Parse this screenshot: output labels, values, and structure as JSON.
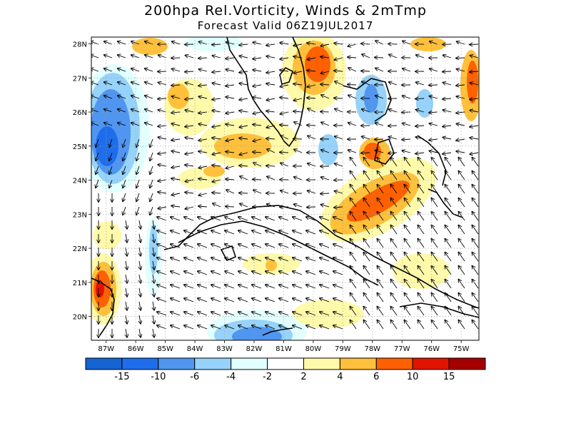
{
  "title": "200hpa Rel.Vorticity, Winds & 2mTmp",
  "subtitle": "Forecast Valid  06Z19JUL2017",
  "lat_labels": [
    "28N",
    "27N",
    "26N",
    "25N",
    "24N",
    "23N",
    "22N",
    "21N",
    "20N"
  ],
  "lon_labels": [
    "87W",
    "86W",
    "85W",
    "84W",
    "83W",
    "82W",
    "81W",
    "80W",
    "79W",
    "78W",
    "77W",
    "76W",
    "75W"
  ],
  "colorbar": {
    "colors": [
      "#1464d2",
      "#1e6eeb",
      "#5096f0",
      "#96d2fa",
      "#e1ffff",
      "#ffffff",
      "#fffaaa",
      "#ffc03c",
      "#ff6000",
      "#e11400",
      "#a50000"
    ],
    "labels": [
      "-15",
      "-10",
      "-6",
      "-4",
      "-2",
      "2",
      "4",
      "6",
      "10",
      "15"
    ]
  },
  "map": {
    "lon_range": [
      -87.5,
      -74.4
    ],
    "lat_range": [
      19.3,
      28.2
    ],
    "field": "relative vorticity",
    "vectors": "winds"
  }
}
